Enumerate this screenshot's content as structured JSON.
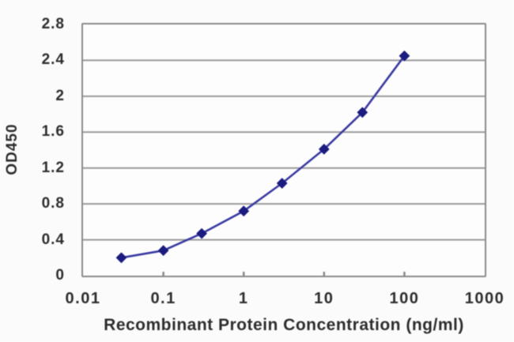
{
  "chart_data": {
    "type": "line",
    "title": "",
    "xlabel": "Recombinant Protein Concentration (ng/ml)",
    "ylabel": "OD450",
    "x_scale": "log",
    "xlim": [
      0.01,
      1000
    ],
    "ylim": [
      0,
      2.8
    ],
    "x_ticks": [
      0.01,
      0.1,
      1,
      10,
      100,
      1000
    ],
    "x_tick_labels": [
      "0.01",
      "0.1",
      "1",
      "10",
      "100",
      "1000"
    ],
    "y_ticks": [
      0,
      0.4,
      0.8,
      1.2,
      1.6,
      2,
      2.4,
      2.8
    ],
    "y_tick_labels": [
      "0",
      "0.4",
      "0.8",
      "1.2",
      "1.6",
      "2",
      "2.4",
      "2.8"
    ],
    "grid": "horizontal",
    "legend": "none",
    "series": [
      {
        "name": "OD450",
        "marker": "diamond",
        "x": [
          0.03,
          0.1,
          0.3,
          1,
          3,
          10,
          30,
          100
        ],
        "y": [
          0.2,
          0.28,
          0.47,
          0.72,
          1.03,
          1.41,
          1.82,
          2.45
        ]
      }
    ],
    "colors": {
      "line": "#3a3aa2",
      "marker": "#1c1c80",
      "grid": "#9a9a9a",
      "border": "#8a8a8a",
      "text": "#2d2d2d",
      "plot_bg": "#fdfdfd",
      "page_bg": "#fbfbfb"
    }
  }
}
